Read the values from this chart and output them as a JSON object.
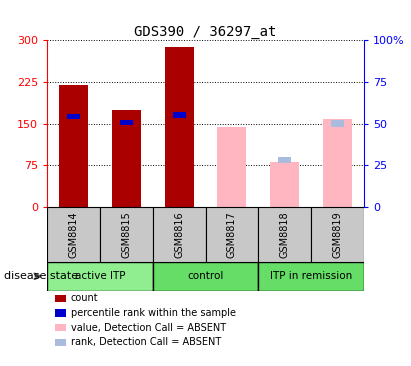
{
  "title": "GDS390 / 36297_at",
  "samples": [
    "GSM8814",
    "GSM8815",
    "GSM8816",
    "GSM8817",
    "GSM8818",
    "GSM8819"
  ],
  "count_values": [
    220,
    175,
    288,
    null,
    null,
    null
  ],
  "percentile_rank_values": [
    163,
    152,
    165,
    null,
    null,
    null
  ],
  "absent_value": [
    null,
    null,
    null,
    143,
    80,
    158
  ],
  "absent_rank": [
    null,
    null,
    null,
    null,
    84,
    150
  ],
  "left_yticks": [
    0,
    75,
    150,
    225,
    300
  ],
  "right_yticks": [
    0,
    25,
    50,
    75,
    100
  ],
  "right_ylabels": [
    "0",
    "25",
    "50",
    "75",
    "100%"
  ],
  "bar_color_present": "#AA0000",
  "bar_color_absent": "#FFB6C1",
  "rank_color_present": "#0000CC",
  "rank_color_absent": "#AABBDD",
  "group_info": [
    {
      "start": 0,
      "end": 2,
      "label": "active ITP",
      "color": "#90EE90"
    },
    {
      "start": 2,
      "end": 4,
      "label": "control",
      "color": "#66DD66"
    },
    {
      "start": 4,
      "end": 6,
      "label": "ITP in remission",
      "color": "#66DD66"
    }
  ],
  "legend_items": [
    {
      "color": "#AA0000",
      "label": "count"
    },
    {
      "color": "#0000CC",
      "label": "percentile rank within the sample"
    },
    {
      "color": "#FFB6C1",
      "label": "value, Detection Call = ABSENT"
    },
    {
      "color": "#AABBDD",
      "label": "rank, Detection Call = ABSENT"
    }
  ]
}
